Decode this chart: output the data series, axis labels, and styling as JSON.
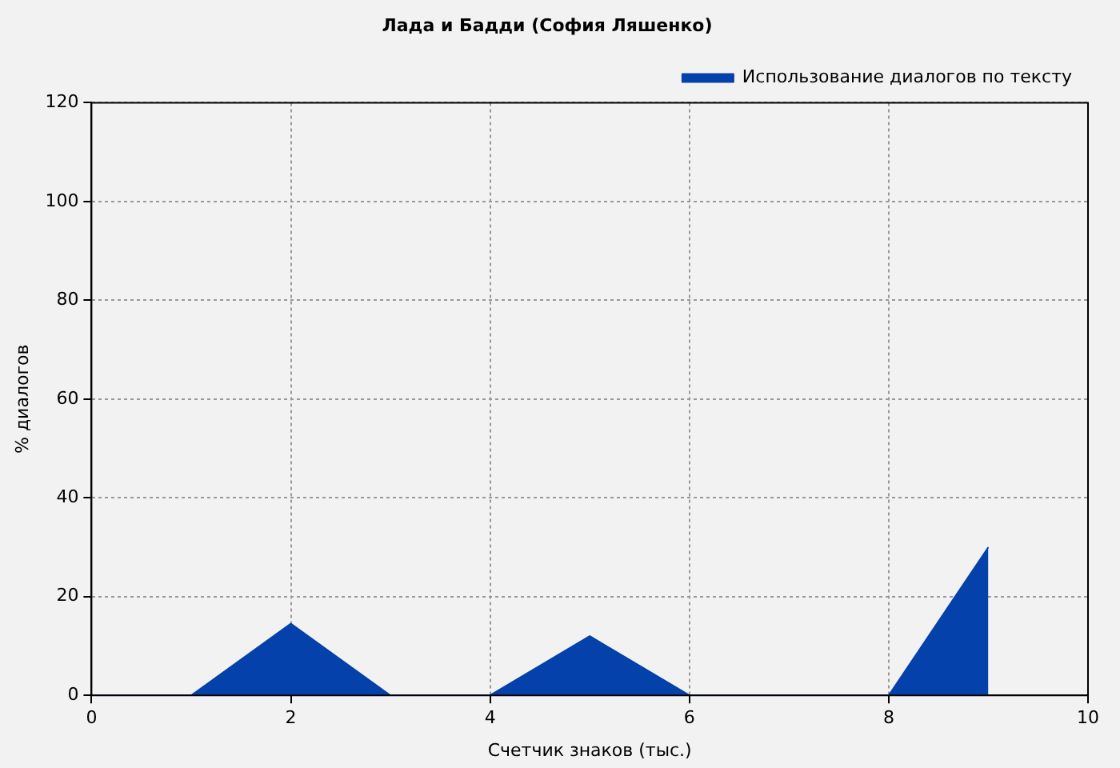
{
  "chart_data": {
    "type": "area",
    "title": "Лада и Бадди (София Ляшенко)",
    "xlabel": "Счетчик знаков (тыс.)",
    "ylabel": "% диалогов",
    "x": [
      0,
      1,
      2,
      3,
      4,
      5,
      6,
      7,
      8,
      9
    ],
    "series": [
      {
        "name": "Использование диалогов по тексту",
        "color": "#0541aa",
        "values": [
          0,
          0,
          14.5,
          0,
          0,
          12,
          0,
          0,
          0,
          30
        ]
      }
    ],
    "xlim": [
      0,
      10
    ],
    "xticks": [
      0,
      2,
      4,
      6,
      8,
      10
    ],
    "ylim": [
      0,
      120
    ],
    "yticks": [
      0,
      20,
      40,
      60,
      80,
      100,
      120
    ],
    "grid": true,
    "legend": "top right"
  }
}
